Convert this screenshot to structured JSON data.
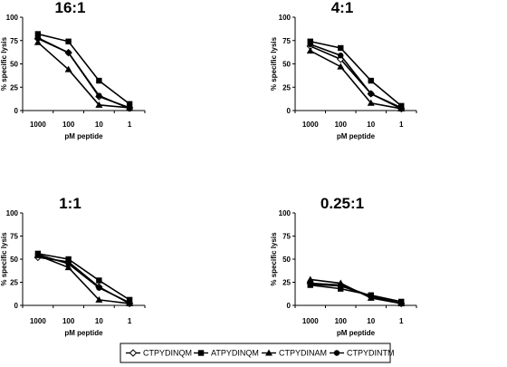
{
  "chart_data": [
    {
      "type": "line",
      "title": "16:1",
      "xlabel": "pM peptide",
      "ylabel": "% specific lysis",
      "categories": [
        "1000",
        "100",
        "10",
        "1"
      ],
      "ylim": [
        0,
        100
      ],
      "yticks": [
        "0",
        "25",
        "50",
        "75",
        "100"
      ],
      "series": [
        {
          "name": "CTPYDINQM",
          "values": [
            77,
            62,
            15,
            3
          ]
        },
        {
          "name": "ATPYDINQM",
          "values": [
            82,
            74,
            32,
            7
          ]
        },
        {
          "name": "CTPYDINAM",
          "values": [
            73,
            44,
            6,
            3
          ]
        },
        {
          "name": "CTPYDINTM",
          "values": [
            78,
            62,
            16,
            2
          ]
        }
      ]
    },
    {
      "type": "line",
      "title": "4:1",
      "xlabel": "pM peptide",
      "ylabel": "% specific lysis",
      "categories": [
        "1000",
        "100",
        "10",
        "1"
      ],
      "ylim": [
        0,
        100
      ],
      "yticks": [
        "0",
        "25",
        "50",
        "75",
        "100"
      ],
      "series": [
        {
          "name": "CTPYDINQM",
          "values": [
            69,
            55,
            18,
            2
          ]
        },
        {
          "name": "ATPYDINQM",
          "values": [
            74,
            67,
            32,
            5
          ]
        },
        {
          "name": "CTPYDINAM",
          "values": [
            64,
            47,
            8,
            2
          ]
        },
        {
          "name": "CTPYDINTM",
          "values": [
            71,
            59,
            18,
            3
          ]
        }
      ]
    },
    {
      "type": "line",
      "title": "1:1",
      "xlabel": "pM peptide",
      "ylabel": "% specific lysis",
      "categories": [
        "1000",
        "100",
        "10",
        "1"
      ],
      "ylim": [
        0,
        100
      ],
      "yticks": [
        "0",
        "25",
        "50",
        "75",
        "100"
      ],
      "series": [
        {
          "name": "CTPYDINQM",
          "values": [
            52,
            47,
            20,
            2
          ]
        },
        {
          "name": "ATPYDINQM",
          "values": [
            56,
            50,
            27,
            6
          ]
        },
        {
          "name": "CTPYDINAM",
          "values": [
            54,
            41,
            6,
            2
          ]
        },
        {
          "name": "CTPYDINTM",
          "values": [
            55,
            45,
            19,
            3
          ]
        }
      ]
    },
    {
      "type": "line",
      "title": "0.25:1",
      "xlabel": "pM peptide",
      "ylabel": "% specific lysis",
      "categories": [
        "1000",
        "100",
        "10",
        "1"
      ],
      "ylim": [
        0,
        100
      ],
      "yticks": [
        "0",
        "25",
        "50",
        "75",
        "100"
      ],
      "series": [
        {
          "name": "CTPYDINQM",
          "values": [
            24,
            22,
            10,
            2
          ]
        },
        {
          "name": "ATPYDINQM",
          "values": [
            22,
            18,
            11,
            4
          ]
        },
        {
          "name": "CTPYDINAM",
          "values": [
            28,
            24,
            8,
            2
          ]
        },
        {
          "name": "CTPYDINTM",
          "values": [
            23,
            21,
            10,
            2
          ]
        }
      ]
    }
  ],
  "legend": {
    "placement": "bottom",
    "items": [
      {
        "label": "CTPYDINQM",
        "marker": "open-diamond"
      },
      {
        "label": "ATPYDINQM",
        "marker": "filled-square"
      },
      {
        "label": "CTPYDINAM",
        "marker": "filled-triangle"
      },
      {
        "label": "CTPYDINTM",
        "marker": "filled-circle"
      }
    ]
  },
  "colors": {
    "line": "#000000",
    "background": "#ffffff"
  }
}
